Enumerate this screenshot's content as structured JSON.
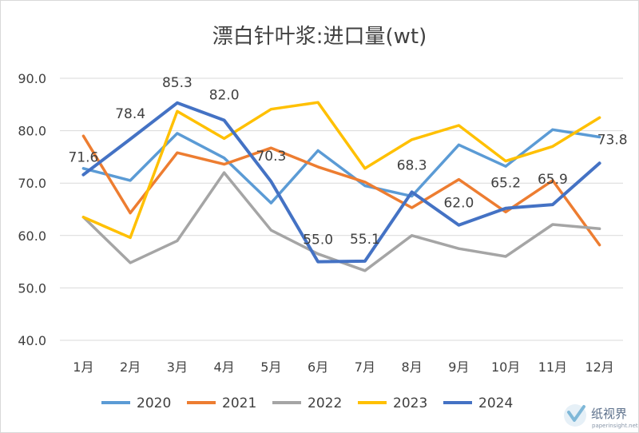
{
  "chart_data": {
    "type": "line",
    "title": "漂白针叶浆:进口量(wt)",
    "xlabel": "",
    "ylabel": "",
    "categories": [
      "1月",
      "2月",
      "3月",
      "4月",
      "5月",
      "6月",
      "7月",
      "8月",
      "9月",
      "10月",
      "11月",
      "12月"
    ],
    "ylim": [
      40,
      90
    ],
    "yticks": [
      "40.0",
      "50.0",
      "60.0",
      "70.0",
      "80.0",
      "90.0"
    ],
    "grid": true,
    "legend_position": "bottom",
    "series": [
      {
        "name": "2020",
        "color": "#5b9bd5",
        "values": [
          72.8,
          70.5,
          79.5,
          74.8,
          66.2,
          76.2,
          69.5,
          67.5,
          77.3,
          73.2,
          80.2,
          78.8
        ]
      },
      {
        "name": "2021",
        "color": "#ed7d31",
        "values": [
          79.0,
          64.3,
          75.8,
          73.6,
          76.7,
          73.1,
          70.2,
          65.3,
          70.7,
          64.5,
          70.5,
          58.2
        ]
      },
      {
        "name": "2022",
        "color": "#a5a5a5",
        "values": [
          63.5,
          54.8,
          59.0,
          72.0,
          61.0,
          56.5,
          53.3,
          60.0,
          57.5,
          56.0,
          62.1,
          61.3
        ]
      },
      {
        "name": "2023",
        "color": "#ffc000",
        "values": [
          63.5,
          59.6,
          83.7,
          78.5,
          84.1,
          85.4,
          72.8,
          78.3,
          81.0,
          74.2,
          77.0,
          82.5
        ]
      },
      {
        "name": "2024",
        "color": "#4472c4",
        "values": [
          71.6,
          78.4,
          85.3,
          82.0,
          70.3,
          55.0,
          55.1,
          68.3,
          62.0,
          65.2,
          65.9,
          73.8
        ]
      }
    ],
    "data_labels": {
      "series": "2024",
      "values": [
        "71.6",
        "78.4",
        "85.3",
        "82.0",
        "70.3",
        "55.0",
        "55.1",
        "68.3",
        "62.0",
        "65.2",
        "65.9",
        "73.8"
      ]
    }
  },
  "watermark": {
    "text": "纸视界",
    "sub": "paperinsight.net"
  }
}
